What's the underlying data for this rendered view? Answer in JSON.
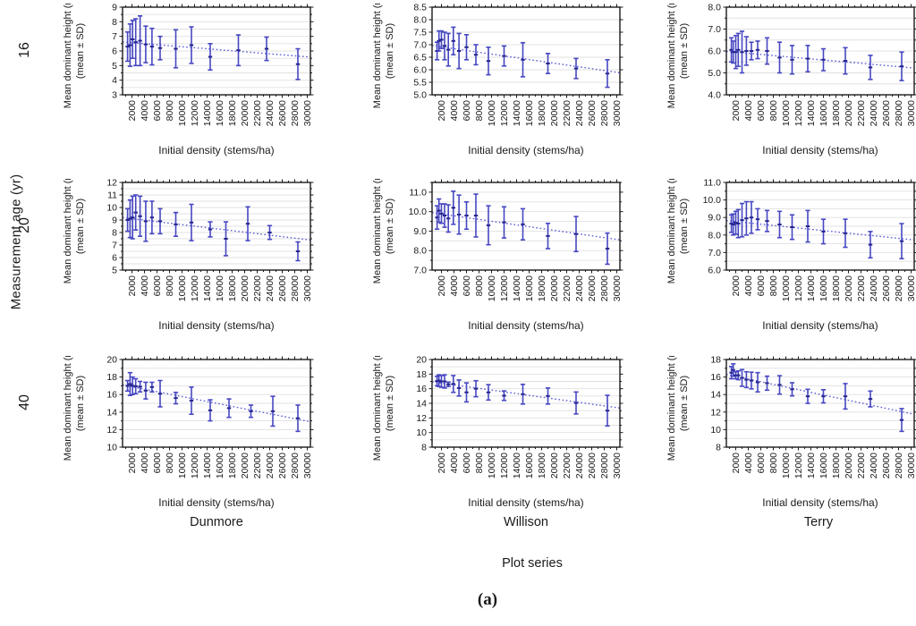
{
  "figure": {
    "row_axis_title": "Measurement age (yr)",
    "row_labels": [
      "16",
      "20",
      "40"
    ],
    "col_axis_title": "Plot series",
    "cols": [
      "Dunmore",
      "Willison",
      "Terry"
    ],
    "caption": "(a)",
    "ylabel_line1": "Mean dominant height (m)",
    "ylabel_line2": "(mean ± SD)",
    "xlabel": "Initial density (stems/ha)",
    "xtick_labels": [
      "2000",
      "4000",
      "6000",
      "8000",
      "10000",
      "12000",
      "14000",
      "16000",
      "18000",
      "20000",
      "22000",
      "24000",
      "26000",
      "28000",
      "30000"
    ],
    "colors": {
      "error_bar": "#4747c2",
      "mean_marker": "#26268f",
      "trend_line": "#5c5cd6",
      "grid_line": "#e0e0e0",
      "frame": "#1a1a1a",
      "text": "#1a1a1a"
    }
  },
  "chart_data": [
    {
      "type": "scatter",
      "error_bars": true,
      "series": "Dunmore",
      "age": "16",
      "xlabel": "Initial density (stems/ha)",
      "ylabel": "Mean dominant height (m) (mean ± SD)",
      "xlim": [
        500,
        30500
      ],
      "ylim": [
        3,
        9
      ],
      "ygrid_step": 0.5,
      "ytick_values": [
        3,
        4,
        5,
        6,
        7,
        8,
        9
      ],
      "ytick_labels": [
        "3",
        "4",
        "5",
        "6",
        "7",
        "8",
        "9"
      ],
      "points": [
        [
          1300,
          6.3,
          1.0
        ],
        [
          1700,
          6.4,
          1.45
        ],
        [
          2100,
          6.8,
          1.3
        ],
        [
          2600,
          6.6,
          1.6
        ],
        [
          3300,
          6.7,
          1.7
        ],
        [
          4200,
          6.45,
          1.25
        ],
        [
          5200,
          6.3,
          1.25
        ],
        [
          6500,
          6.2,
          0.8
        ],
        [
          9000,
          6.15,
          1.3
        ],
        [
          11500,
          6.4,
          1.25
        ],
        [
          14500,
          5.6,
          0.9
        ],
        [
          19000,
          6.05,
          1.05
        ],
        [
          23500,
          6.15,
          0.8
        ],
        [
          28500,
          5.1,
          1.05
        ]
      ],
      "trend_endpoints_y": [
        6.62,
        5.58
      ]
    },
    {
      "type": "scatter",
      "error_bars": true,
      "series": "Willison",
      "age": "16",
      "xlabel": "Initial density (stems/ha)",
      "ylabel": "Mean dominant height (m) (mean ± SD)",
      "xlim": [
        500,
        30500
      ],
      "ylim": [
        5.0,
        8.5
      ],
      "ygrid_step": 0.5,
      "ytick_values": [
        5.0,
        5.5,
        6.0,
        6.5,
        7.0,
        7.5,
        8.0,
        8.5
      ],
      "ytick_labels": [
        "5.0",
        "5.5",
        "6.0",
        "6.5",
        "7.0",
        "7.5",
        "8.0",
        "8.5"
      ],
      "points": [
        [
          1300,
          6.75,
          0.35
        ],
        [
          1600,
          7.15,
          0.4
        ],
        [
          2000,
          7.2,
          0.35
        ],
        [
          2500,
          6.95,
          0.55
        ],
        [
          3100,
          6.8,
          0.65
        ],
        [
          3900,
          7.15,
          0.55
        ],
        [
          4800,
          6.75,
          0.7
        ],
        [
          6000,
          6.9,
          0.5
        ],
        [
          7500,
          6.6,
          0.4
        ],
        [
          9500,
          6.35,
          0.55
        ],
        [
          12000,
          6.55,
          0.4
        ],
        [
          15000,
          6.4,
          0.68
        ],
        [
          19000,
          6.25,
          0.4
        ],
        [
          23500,
          6.05,
          0.4
        ],
        [
          28500,
          5.85,
          0.55
        ]
      ],
      "trend_endpoints_y": [
        6.97,
        5.88
      ]
    },
    {
      "type": "scatter",
      "error_bars": true,
      "series": "Terry",
      "age": "16",
      "xlabel": "Initial density (stems/ha)",
      "ylabel": "Mean dominant height (m) (mean ± SD)",
      "xlim": [
        500,
        30500
      ],
      "ylim": [
        4.0,
        8.0
      ],
      "ygrid_step": 0.5,
      "ytick_values": [
        4,
        5,
        6,
        7,
        8
      ],
      "ytick_labels": [
        "4.0",
        "5.0",
        "6.0",
        "7.0",
        "8.0"
      ],
      "points": [
        [
          1300,
          6.05,
          0.55
        ],
        [
          1600,
          5.95,
          0.5
        ],
        [
          2000,
          5.95,
          0.75
        ],
        [
          2400,
          6.05,
          0.75
        ],
        [
          3000,
          5.95,
          0.95
        ],
        [
          3700,
          6.0,
          0.65
        ],
        [
          4500,
          6.0,
          0.4
        ],
        [
          5500,
          6.05,
          0.4
        ],
        [
          7000,
          6.0,
          0.6
        ],
        [
          9000,
          5.7,
          0.7
        ],
        [
          11000,
          5.6,
          0.65
        ],
        [
          13500,
          5.65,
          0.6
        ],
        [
          16000,
          5.6,
          0.5
        ],
        [
          19500,
          5.55,
          0.6
        ],
        [
          23500,
          5.25,
          0.55
        ],
        [
          28500,
          5.3,
          0.65
        ]
      ],
      "trend_endpoints_y": [
        5.98,
        5.22
      ]
    },
    {
      "type": "scatter",
      "error_bars": true,
      "series": "Dunmore",
      "age": "20",
      "xlabel": "Initial density (stems/ha)",
      "ylabel": "Mean dominant height (m) (mean ± SD)",
      "xlim": [
        500,
        30500
      ],
      "ylim": [
        5,
        12
      ],
      "ygrid_step": 0.5,
      "ytick_values": [
        5,
        6,
        7,
        8,
        9,
        10,
        11,
        12
      ],
      "ytick_labels": [
        "5",
        "6",
        "7",
        "8",
        "9",
        "10",
        "11",
        "12"
      ],
      "points": [
        [
          1300,
          9.0,
          0.9
        ],
        [
          1700,
          9.1,
          1.5
        ],
        [
          2100,
          9.2,
          1.7
        ],
        [
          2600,
          9.6,
          1.4
        ],
        [
          3300,
          9.3,
          1.6
        ],
        [
          4200,
          8.9,
          1.6
        ],
        [
          5200,
          9.2,
          1.3
        ],
        [
          6500,
          8.9,
          1.0
        ],
        [
          9000,
          8.65,
          0.95
        ],
        [
          11500,
          8.8,
          1.45
        ],
        [
          14500,
          8.25,
          0.6
        ],
        [
          17000,
          7.5,
          1.35
        ],
        [
          20500,
          8.7,
          1.35
        ],
        [
          24000,
          8.0,
          0.55
        ],
        [
          28500,
          6.5,
          0.75
        ]
      ],
      "trend_endpoints_y": [
        9.2,
        7.4
      ]
    },
    {
      "type": "scatter",
      "error_bars": true,
      "series": "Willison",
      "age": "20",
      "xlabel": "Initial density (stems/ha)",
      "ylabel": "Mean dominant height (m) (mean ± SD)",
      "xlim": [
        500,
        30500
      ],
      "ylim": [
        7.0,
        11.5
      ],
      "ygrid_step": 0.5,
      "ytick_values": [
        7,
        8,
        9,
        10,
        11
      ],
      "ytick_labels": [
        "7.0",
        "8.0",
        "9.0",
        "10.0",
        "11.0"
      ],
      "points": [
        [
          1300,
          9.7,
          0.6
        ],
        [
          1600,
          10.05,
          0.6
        ],
        [
          2000,
          9.9,
          0.5
        ],
        [
          2500,
          9.8,
          0.6
        ],
        [
          3100,
          9.65,
          0.7
        ],
        [
          3900,
          10.2,
          0.85
        ],
        [
          4800,
          9.85,
          1.0
        ],
        [
          6000,
          9.8,
          0.7
        ],
        [
          7500,
          9.8,
          1.1
        ],
        [
          9500,
          9.3,
          1.0
        ],
        [
          12000,
          9.45,
          0.8
        ],
        [
          15000,
          9.35,
          0.8
        ],
        [
          19000,
          8.75,
          0.65
        ],
        [
          23500,
          8.85,
          0.9
        ],
        [
          28500,
          8.1,
          0.8
        ]
      ],
      "trend_endpoints_y": [
        9.95,
        8.55
      ]
    },
    {
      "type": "scatter",
      "error_bars": true,
      "series": "Terry",
      "age": "20",
      "xlabel": "Initial density (stems/ha)",
      "ylabel": "Mean dominant height (m) (mean ± SD)",
      "xlim": [
        500,
        30500
      ],
      "ylim": [
        6.0,
        11.0
      ],
      "ygrid_step": 0.5,
      "ytick_values": [
        6,
        7,
        8,
        9,
        10,
        11
      ],
      "ytick_labels": [
        "6.0",
        "7.0",
        "8.0",
        "9.0",
        "10.0",
        "11.0"
      ],
      "points": [
        [
          1300,
          8.65,
          0.5
        ],
        [
          1600,
          8.6,
          0.6
        ],
        [
          2000,
          8.7,
          0.65
        ],
        [
          2400,
          8.65,
          0.8
        ],
        [
          3000,
          8.85,
          0.95
        ],
        [
          3700,
          8.95,
          0.95
        ],
        [
          4500,
          9.0,
          0.9
        ],
        [
          5500,
          8.9,
          0.6
        ],
        [
          7000,
          8.8,
          0.6
        ],
        [
          9000,
          8.6,
          0.75
        ],
        [
          11000,
          8.45,
          0.7
        ],
        [
          13500,
          8.5,
          0.9
        ],
        [
          16000,
          8.2,
          0.7
        ],
        [
          19500,
          8.1,
          0.8
        ],
        [
          23500,
          7.45,
          0.75
        ],
        [
          28500,
          7.65,
          1.0
        ]
      ],
      "trend_endpoints_y": [
        8.82,
        7.72
      ]
    },
    {
      "type": "scatter",
      "error_bars": true,
      "series": "Dunmore",
      "age": "40",
      "xlabel": "Initial density (stems/ha)",
      "ylabel": "Mean dominant height (m) (mean ± SD)",
      "xlim": [
        500,
        30500
      ],
      "ylim": [
        10,
        20
      ],
      "ygrid_step": 1,
      "ytick_values": [
        10,
        12,
        14,
        16,
        18,
        20
      ],
      "ytick_labels": [
        "10",
        "12",
        "14",
        "16",
        "18",
        "20"
      ],
      "points": [
        [
          1300,
          17.0,
          0.6
        ],
        [
          1700,
          17.2,
          1.3
        ],
        [
          2100,
          17.0,
          1.0
        ],
        [
          2600,
          16.95,
          0.85
        ],
        [
          3300,
          16.9,
          0.6
        ],
        [
          4200,
          16.45,
          0.95
        ],
        [
          5200,
          16.85,
          0.55
        ],
        [
          6500,
          16.1,
          1.5
        ],
        [
          9000,
          15.6,
          0.65
        ],
        [
          11500,
          15.3,
          1.55
        ],
        [
          14500,
          14.2,
          1.2
        ],
        [
          17500,
          14.45,
          1.05
        ],
        [
          21000,
          14.1,
          0.7
        ],
        [
          24500,
          14.1,
          1.7
        ],
        [
          28500,
          13.3,
          1.5
        ]
      ],
      "trend_endpoints_y": [
        17.1,
        12.9
      ]
    },
    {
      "type": "scatter",
      "error_bars": true,
      "series": "Willison",
      "age": "40",
      "xlabel": "Initial density (stems/ha)",
      "ylabel": "Mean dominant height (m) (mean ± SD)",
      "xlim": [
        500,
        30500
      ],
      "ylim": [
        8,
        20
      ],
      "ygrid_step": 1,
      "ytick_values": [
        8,
        10,
        12,
        14,
        16,
        18,
        20
      ],
      "ytick_labels": [
        "8",
        "10",
        "12",
        "14",
        "16",
        "18",
        "20"
      ],
      "points": [
        [
          1300,
          17.05,
          0.65
        ],
        [
          1600,
          17.1,
          0.8
        ],
        [
          2000,
          17.0,
          0.8
        ],
        [
          2500,
          17.0,
          0.9
        ],
        [
          3100,
          16.6,
          0.3
        ],
        [
          3900,
          16.65,
          1.15
        ],
        [
          4800,
          16.1,
          1.1
        ],
        [
          6000,
          15.5,
          1.3
        ],
        [
          7500,
          16.0,
          1.1
        ],
        [
          9500,
          15.5,
          1.05
        ],
        [
          12000,
          15.05,
          0.65
        ],
        [
          15000,
          15.25,
          1.35
        ],
        [
          19000,
          15.0,
          1.1
        ],
        [
          23500,
          14.05,
          1.5
        ],
        [
          28500,
          13.0,
          2.1
        ]
      ],
      "trend_endpoints_y": [
        16.95,
        13.35
      ]
    },
    {
      "type": "scatter",
      "error_bars": true,
      "series": "Terry",
      "age": "40",
      "xlabel": "Initial density (stems/ha)",
      "ylabel": "Mean dominant height (m) (mean ± SD)",
      "xlim": [
        500,
        30500
      ],
      "ylim": [
        8,
        18
      ],
      "ygrid_step": 1,
      "ytick_values": [
        8,
        10,
        12,
        14,
        16,
        18
      ],
      "ytick_labels": [
        "8",
        "10",
        "12",
        "14",
        "16",
        "18"
      ],
      "points": [
        [
          1300,
          16.5,
          0.7
        ],
        [
          1600,
          16.8,
          0.7
        ],
        [
          2000,
          16.2,
          0.4
        ],
        [
          2400,
          16.2,
          0.5
        ],
        [
          3000,
          15.9,
          0.95
        ],
        [
          3700,
          15.7,
          0.9
        ],
        [
          4500,
          15.6,
          0.95
        ],
        [
          5500,
          15.4,
          1.1
        ],
        [
          7000,
          15.3,
          0.8
        ],
        [
          9000,
          15.1,
          1.05
        ],
        [
          11000,
          14.6,
          0.75
        ],
        [
          13500,
          13.8,
          0.8
        ],
        [
          16000,
          13.8,
          0.75
        ],
        [
          19500,
          13.8,
          1.45
        ],
        [
          23500,
          13.5,
          0.9
        ],
        [
          28500,
          11.1,
          1.3
        ]
      ],
      "trend_endpoints_y": [
        16.3,
        11.75
      ]
    }
  ]
}
